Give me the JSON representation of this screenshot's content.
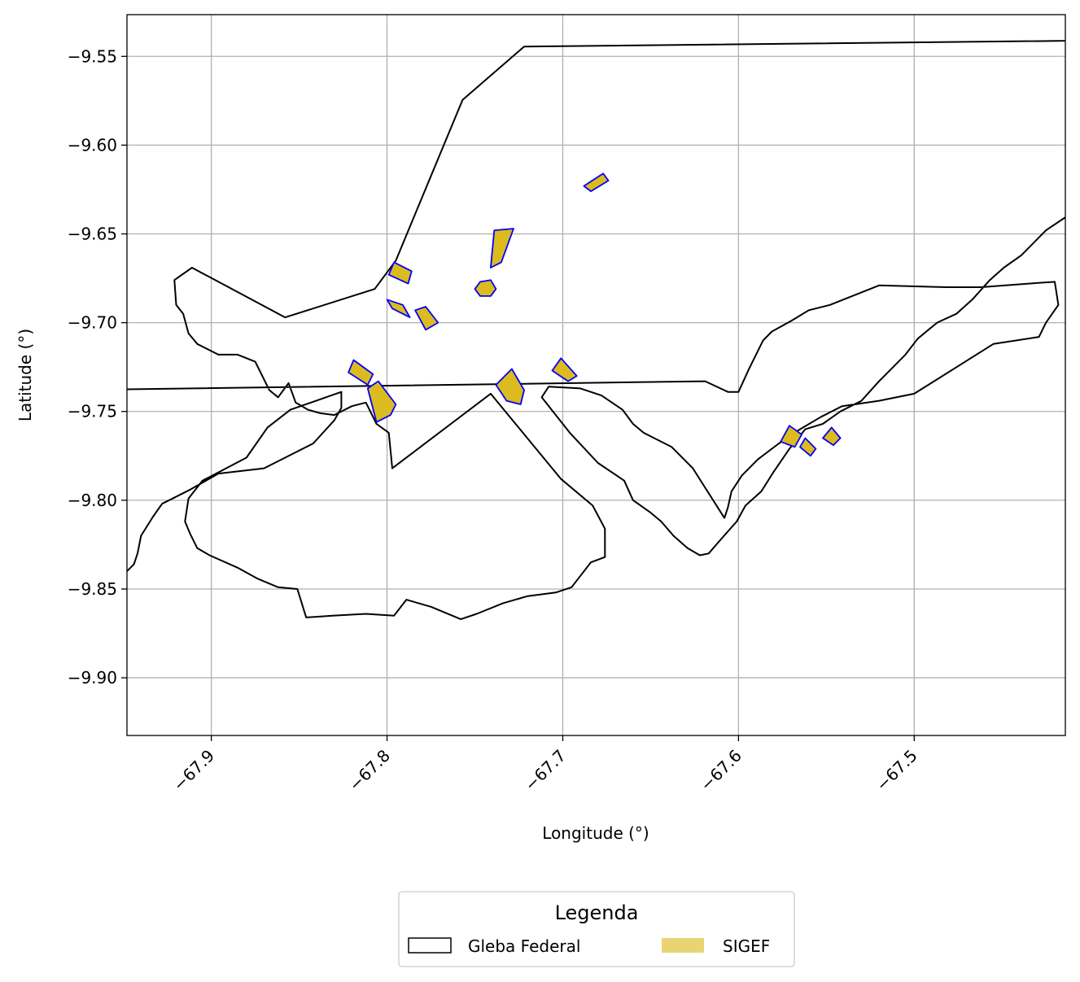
{
  "chart_data": {
    "type": "map",
    "xlabel": "Longitude (°)",
    "ylabel": "Latitude (°)",
    "xlim": [
      -67.948,
      -67.414
    ],
    "ylim": [
      -9.9325,
      -9.5265
    ],
    "x_ticks": [
      -67.9,
      -67.8,
      -67.7,
      -67.6,
      -67.5
    ],
    "x_tick_labels": [
      "−67.9",
      "−67.8",
      "−67.7",
      "−67.6",
      "−67.5"
    ],
    "y_ticks": [
      -9.55,
      -9.6,
      -9.65,
      -9.7,
      -9.75,
      -9.8,
      -9.85,
      -9.9
    ],
    "y_tick_labels": [
      "−9.55",
      "−9.60",
      "−9.65",
      "−9.70",
      "−9.75",
      "−9.80",
      "−9.85",
      "−9.90"
    ],
    "grid": true,
    "legend": {
      "title": "Legenda",
      "placement": "bottom-center",
      "entries": [
        {
          "label": "Gleba Federal",
          "style": "outline",
          "color": "#000000"
        },
        {
          "label": "SIGEF",
          "style": "fill",
          "color": "#e8d472"
        }
      ]
    },
    "colors": {
      "gleba_edge": "#000000",
      "sigef_fill": "#dcbb1e",
      "sigef_edge": "#0000ff",
      "grid": "#b0b0b0"
    },
    "gleba_polygons": [
      [
        [
          -67.722,
          -9.5445
        ],
        [
          -67.757,
          -9.5745
        ],
        [
          -67.795,
          -9.665
        ],
        [
          -67.807,
          -9.681
        ],
        [
          -67.858,
          -9.697
        ],
        [
          -67.911,
          -9.669
        ],
        [
          -67.921,
          -9.676
        ],
        [
          -67.92,
          -9.69
        ],
        [
          -67.916,
          -9.695
        ],
        [
          -67.913,
          -9.706
        ],
        [
          -67.908,
          -9.712
        ],
        [
          -67.896,
          -9.718
        ],
        [
          -67.885,
          -9.718
        ],
        [
          -67.875,
          -9.722
        ],
        [
          -67.867,
          -9.738
        ],
        [
          -67.862,
          -9.742
        ],
        [
          -67.856,
          -9.734
        ],
        [
          -67.852,
          -9.745
        ],
        [
          -67.845,
          -9.749
        ],
        [
          -67.838,
          -9.751
        ],
        [
          -67.83,
          -9.752
        ],
        [
          -67.82,
          -9.747
        ],
        [
          -67.812,
          -9.745
        ],
        [
          -67.806,
          -9.757
        ],
        [
          -67.799,
          -9.762
        ],
        [
          -67.797,
          -9.782
        ],
        [
          -67.741,
          -9.74
        ],
        [
          -67.701,
          -9.788
        ],
        [
          -67.683,
          -9.803
        ],
        [
          -67.676,
          -9.816
        ],
        [
          -67.676,
          -9.832
        ],
        [
          -67.684,
          -9.835
        ],
        [
          -67.695,
          -9.849
        ],
        [
          -67.704,
          -9.852
        ],
        [
          -67.72,
          -9.854
        ],
        [
          -67.734,
          -9.858
        ],
        [
          -67.749,
          -9.864
        ],
        [
          -67.758,
          -9.867
        ],
        [
          -67.775,
          -9.86
        ],
        [
          -67.789,
          -9.856
        ],
        [
          -67.796,
          -9.865
        ],
        [
          -67.812,
          -9.864
        ],
        [
          -67.831,
          -9.865
        ],
        [
          -67.846,
          -9.866
        ],
        [
          -67.851,
          -9.85
        ],
        [
          -67.862,
          -9.849
        ],
        [
          -67.874,
          -9.844
        ],
        [
          -67.885,
          -9.838
        ],
        [
          -67.901,
          -9.831
        ],
        [
          -67.908,
          -9.827
        ],
        [
          -67.912,
          -9.819
        ],
        [
          -67.915,
          -9.812
        ],
        [
          -67.913,
          -9.799
        ],
        [
          -67.905,
          -9.789
        ],
        [
          -67.88,
          -9.776
        ],
        [
          -67.868,
          -9.759
        ],
        [
          -67.855,
          -9.749
        ],
        [
          -67.826,
          -9.739
        ],
        [
          -67.826,
          -9.748
        ],
        [
          -67.83,
          -9.755
        ],
        [
          -67.842,
          -9.768
        ],
        [
          -67.87,
          -9.782
        ],
        [
          -67.896,
          -9.785
        ],
        [
          -67.912,
          -9.794
        ],
        [
          -67.928,
          -9.802
        ],
        [
          -67.933,
          -9.809
        ],
        [
          -67.94,
          -9.82
        ],
        [
          -67.942,
          -9.83
        ],
        [
          -67.944,
          -9.836
        ],
        [
          -67.95,
          -9.842
        ],
        [
          -67.962,
          -9.847
        ],
        [
          -67.968,
          -9.847
        ],
        [
          -67.975,
          -9.854
        ],
        [
          -67.983,
          -9.856
        ],
        [
          -67.995,
          -9.869
        ],
        [
          -68.006,
          -9.876
        ],
        [
          -67.991,
          -9.908
        ],
        [
          -67.996,
          -9.912
        ],
        [
          -67.991,
          -9.913
        ],
        [
          -67.993,
          -9.907
        ],
        [
          -67.999,
          -9.904
        ],
        [
          -68.011,
          -9.893
        ],
        [
          -68.03,
          -9.88
        ],
        [
          -68.036,
          -9.846
        ],
        [
          -68.04,
          -9.818
        ],
        [
          -68.051,
          -9.768
        ],
        [
          -68.053,
          -9.739
        ],
        [
          -67.619,
          -9.733
        ],
        [
          -67.606,
          -9.739
        ],
        [
          -67.6,
          -9.739
        ],
        [
          -67.594,
          -9.726
        ],
        [
          -67.586,
          -9.71
        ],
        [
          -67.581,
          -9.705
        ],
        [
          -67.57,
          -9.699
        ],
        [
          -67.56,
          -9.693
        ],
        [
          -67.548,
          -9.69
        ],
        [
          -67.52,
          -9.679
        ],
        [
          -67.481,
          -9.68
        ],
        [
          -67.462,
          -9.68
        ],
        [
          -67.435,
          -9.678
        ],
        [
          -67.42,
          -9.677
        ],
        [
          -67.418,
          -9.69
        ],
        [
          -67.425,
          -9.7
        ],
        [
          -67.429,
          -9.708
        ],
        [
          -67.455,
          -9.712
        ],
        [
          -67.5,
          -9.74
        ],
        [
          -67.52,
          -9.744
        ],
        [
          -67.541,
          -9.747
        ],
        [
          -67.553,
          -9.753
        ],
        [
          -67.565,
          -9.76
        ],
        [
          -67.577,
          -9.768
        ],
        [
          -67.589,
          -9.777
        ],
        [
          -67.598,
          -9.786
        ],
        [
          -67.604,
          -9.795
        ],
        [
          -67.606,
          -9.804
        ],
        [
          -67.608,
          -9.81
        ],
        [
          -67.626,
          -9.782
        ],
        [
          -67.638,
          -9.77
        ],
        [
          -67.648,
          -9.765
        ],
        [
          -67.654,
          -9.762
        ],
        [
          -67.66,
          -9.757
        ],
        [
          -67.666,
          -9.749
        ],
        [
          -67.678,
          -9.741
        ],
        [
          -67.69,
          -9.737
        ],
        [
          -67.708,
          -9.736
        ],
        [
          -67.712,
          -9.742
        ],
        [
          -67.696,
          -9.762
        ],
        [
          -67.68,
          -9.779
        ],
        [
          -67.665,
          -9.789
        ],
        [
          -67.66,
          -9.8
        ],
        [
          -67.65,
          -9.807
        ],
        [
          -67.644,
          -9.812
        ],
        [
          -67.637,
          -9.82
        ],
        [
          -67.629,
          -9.827
        ],
        [
          -67.622,
          -9.831
        ],
        [
          -67.617,
          -9.83
        ],
        [
          -67.61,
          -9.822
        ],
        [
          -67.601,
          -9.812
        ],
        [
          -67.596,
          -9.803
        ],
        [
          -67.587,
          -9.795
        ],
        [
          -67.58,
          -9.784
        ],
        [
          -67.571,
          -9.771
        ],
        [
          -67.562,
          -9.76
        ],
        [
          -67.552,
          -9.757
        ],
        [
          -67.542,
          -9.75
        ],
        [
          -67.53,
          -9.744
        ],
        [
          -67.52,
          -9.733
        ],
        [
          -67.505,
          -9.718
        ],
        [
          -67.498,
          -9.709
        ],
        [
          -67.487,
          -9.7
        ],
        [
          -67.476,
          -9.695
        ],
        [
          -67.467,
          -9.687
        ],
        [
          -67.457,
          -9.676
        ],
        [
          -67.449,
          -9.669
        ],
        [
          -67.439,
          -9.662
        ],
        [
          -67.425,
          -9.648
        ],
        [
          -67.404,
          -9.634
        ],
        [
          -67.392,
          -9.622
        ],
        [
          -67.38,
          -9.612
        ],
        [
          -67.369,
          -9.599
        ],
        [
          -67.36,
          -9.588
        ],
        [
          -67.35,
          -9.577
        ],
        [
          -67.335,
          -9.564
        ],
        [
          -67.319,
          -9.552
        ],
        [
          -67.3,
          -9.54
        ],
        [
          -67.722,
          -9.5445
        ]
      ]
    ],
    "sigef_polygons": [
      [
        [
          -67.796,
          -9.666
        ],
        [
          -67.799,
          -9.673
        ],
        [
          -67.788,
          -9.678
        ],
        [
          -67.786,
          -9.671
        ]
      ],
      [
        [
          -67.8,
          -9.687
        ],
        [
          -67.797,
          -9.692
        ],
        [
          -67.787,
          -9.697
        ],
        [
          -67.791,
          -9.69
        ]
      ],
      [
        [
          -67.784,
          -9.693
        ],
        [
          -67.778,
          -9.691
        ],
        [
          -67.771,
          -9.7
        ],
        [
          -67.778,
          -9.704
        ]
      ],
      [
        [
          -67.747,
          -9.677
        ],
        [
          -67.741,
          -9.676
        ],
        [
          -67.738,
          -9.681
        ],
        [
          -67.741,
          -9.685
        ],
        [
          -67.747,
          -9.685
        ],
        [
          -67.75,
          -9.681
        ]
      ],
      [
        [
          -67.739,
          -9.648
        ],
        [
          -67.728,
          -9.647
        ],
        [
          -67.735,
          -9.666
        ],
        [
          -67.741,
          -9.669
        ]
      ],
      [
        [
          -67.684,
          -9.626
        ],
        [
          -67.688,
          -9.623
        ],
        [
          -67.677,
          -9.616
        ],
        [
          -67.674,
          -9.62
        ]
      ],
      [
        [
          -67.822,
          -9.728
        ],
        [
          -67.819,
          -9.721
        ],
        [
          -67.808,
          -9.729
        ],
        [
          -67.811,
          -9.735
        ]
      ],
      [
        [
          -67.811,
          -9.737
        ],
        [
          -67.805,
          -9.733
        ],
        [
          -67.795,
          -9.746
        ],
        [
          -67.798,
          -9.752
        ],
        [
          -67.806,
          -9.756
        ]
      ],
      [
        [
          -67.738,
          -9.735
        ],
        [
          -67.729,
          -9.726
        ],
        [
          -67.722,
          -9.738
        ],
        [
          -67.724,
          -9.746
        ],
        [
          -67.732,
          -9.744
        ]
      ],
      [
        [
          -67.706,
          -9.727
        ],
        [
          -67.701,
          -9.72
        ],
        [
          -67.692,
          -9.73
        ],
        [
          -67.697,
          -9.733
        ]
      ],
      [
        [
          -67.576,
          -9.767
        ],
        [
          -67.571,
          -9.758
        ],
        [
          -67.564,
          -9.763
        ],
        [
          -67.568,
          -9.77
        ]
      ],
      [
        [
          -67.565,
          -9.77
        ],
        [
          -67.562,
          -9.765
        ],
        [
          -67.556,
          -9.771
        ],
        [
          -67.559,
          -9.775
        ]
      ],
      [
        [
          -67.552,
          -9.765
        ],
        [
          -67.547,
          -9.759
        ],
        [
          -67.542,
          -9.765
        ],
        [
          -67.546,
          -9.769
        ]
      ]
    ]
  }
}
